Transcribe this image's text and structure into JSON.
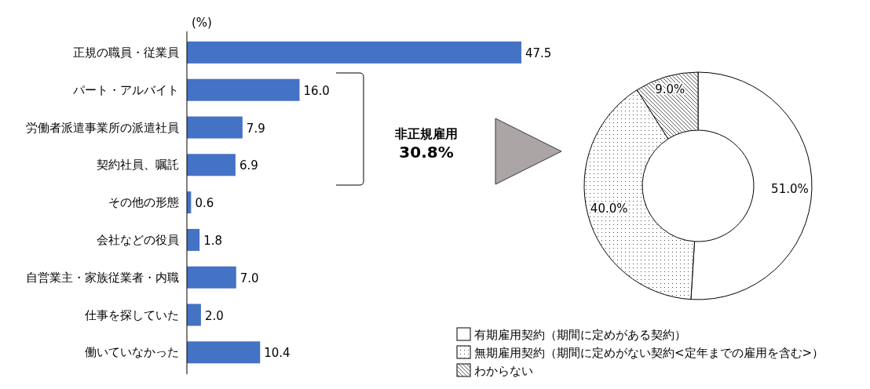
{
  "chart_data": [
    {
      "type": "bar",
      "orientation": "horizontal",
      "xlabel": "(%)",
      "categories": [
        "正規の職員・従業員",
        "パート・アルバイト",
        "労働者派遣事業所の派遣社員",
        "契約社員、嘱託",
        "その他の形態",
        "会社などの役員",
        "自営業主・家族従業者・内職",
        "仕事を探していた",
        "働いていなかった"
      ],
      "values": [
        47.5,
        16.0,
        7.9,
        6.9,
        0.6,
        1.8,
        7.0,
        2.0,
        10.4
      ],
      "value_labels": [
        "47.5",
        "16.0",
        "7.9",
        "6.9",
        "0.6",
        "1.8",
        "7.0",
        "2.0",
        "10.4"
      ],
      "color": "#4472c4",
      "annotations": [
        "非正規雇用",
        "30.8%"
      ]
    },
    {
      "type": "donut",
      "categories": [
        "有期雇用契約（期間に定めがある契約）",
        "無期雇用契約（期間に定めがない契約<定年までの雇用を含む>）",
        "わからない"
      ],
      "values": [
        51.0,
        40.0,
        9.0
      ],
      "value_labels": [
        "51.0%",
        "40.0%",
        "9.0%"
      ],
      "colors": [
        "#ffffff",
        "#ffffff",
        "#ffffff"
      ],
      "legend": "bottom"
    }
  ]
}
